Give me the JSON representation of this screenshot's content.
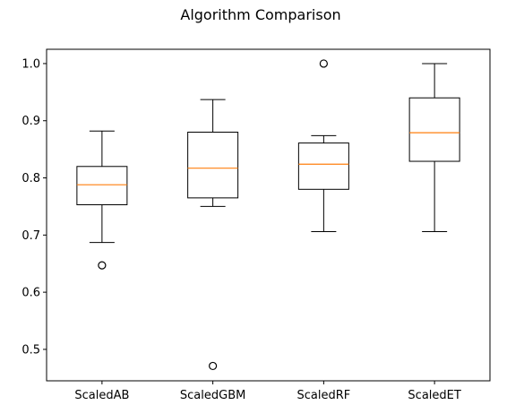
{
  "chart_data": {
    "type": "box",
    "title": "Algorithm Comparison",
    "xlabel": "",
    "ylabel": "",
    "ylim": [
      0.445,
      1.025
    ],
    "yticks": [
      0.5,
      0.6,
      0.7,
      0.8,
      0.9,
      1.0
    ],
    "ytick_labels": [
      "0.5",
      "0.6",
      "0.7",
      "0.8",
      "0.9",
      "1.0"
    ],
    "categories": [
      "ScaledAB",
      "ScaledGBM",
      "ScaledRF",
      "ScaledET"
    ],
    "boxes": [
      {
        "name": "ScaledAB",
        "whisker_low": 0.687,
        "q1": 0.753,
        "median": 0.788,
        "q3": 0.82,
        "whisker_high": 0.882,
        "outliers": [
          0.647
        ]
      },
      {
        "name": "ScaledGBM",
        "whisker_low": 0.75,
        "q1": 0.765,
        "median": 0.817,
        "q3": 0.88,
        "whisker_high": 0.937,
        "outliers": [
          0.471
        ]
      },
      {
        "name": "ScaledRF",
        "whisker_low": 0.706,
        "q1": 0.78,
        "median": 0.824,
        "q3": 0.861,
        "whisker_high": 0.874,
        "outliers": [
          1.0
        ]
      },
      {
        "name": "ScaledET",
        "whisker_low": 0.706,
        "q1": 0.829,
        "median": 0.879,
        "q3": 0.94,
        "whisker_high": 1.0,
        "outliers": []
      }
    ],
    "grid": false,
    "legend": "none",
    "colors": {
      "box": "#000000",
      "median": "#ff7f0e",
      "outlier": "#000000"
    }
  }
}
